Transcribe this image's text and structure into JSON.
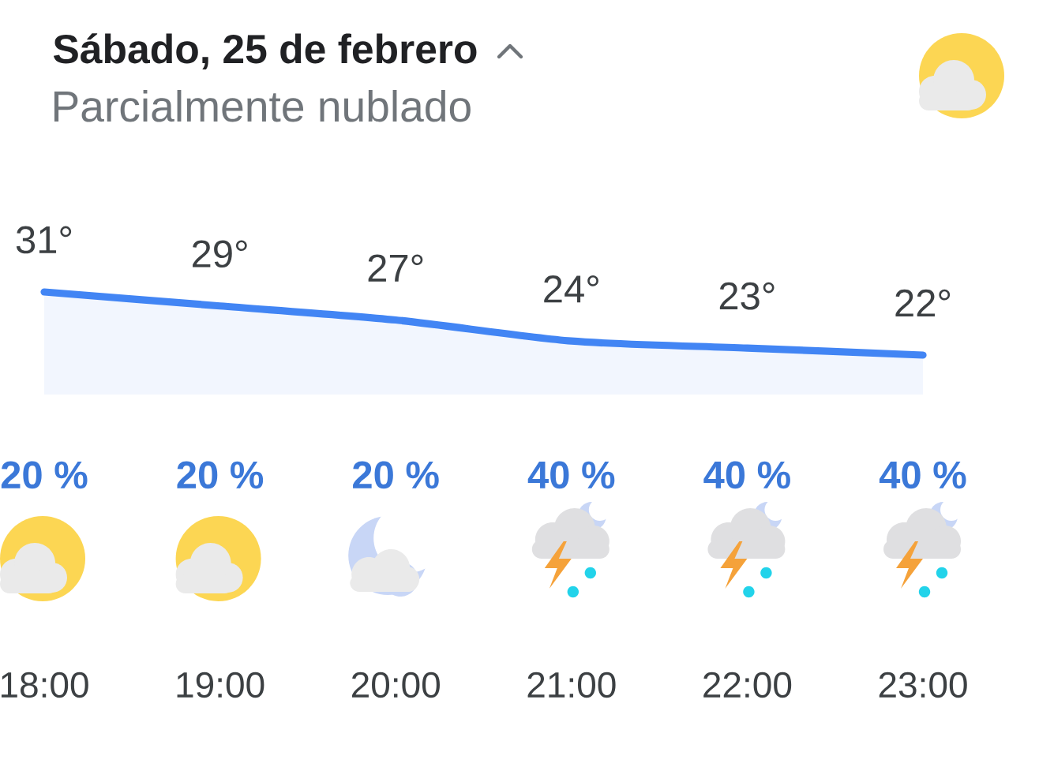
{
  "chart_data": {
    "type": "area",
    "title": "Sábado, 25 de febrero",
    "subtitle": "Parcialmente nublado",
    "categories": [
      "18:00",
      "19:00",
      "20:00",
      "21:00",
      "22:00",
      "23:00"
    ],
    "values": [
      31,
      29,
      27,
      24,
      23,
      22
    ],
    "value_labels": [
      "31°",
      "29°",
      "27°",
      "24°",
      "23°",
      "22°"
    ],
    "color": "#4285f4",
    "marker": "none",
    "annotations": [
      "20 %",
      "20 %",
      "20 %",
      "40 %",
      "40 %",
      "40 %"
    ]
  }
}
